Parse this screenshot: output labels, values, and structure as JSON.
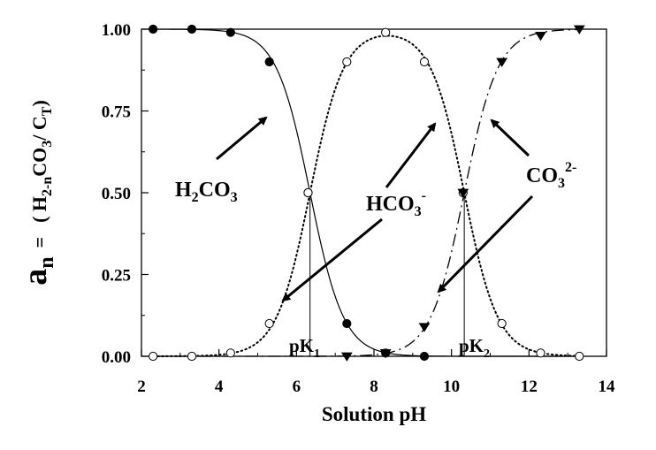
{
  "chart_data": {
    "type": "line",
    "xlabel": "Solution pH",
    "ylabel": {
      "main": "a",
      "sub_n": "n",
      "equals": "=",
      "open": "( H",
      "sub_expr": "2-n",
      "co": "CO",
      "sub_3": "3",
      "slash": "/ C",
      "sub_t": "T",
      "close": ")"
    },
    "xlim": [
      2,
      14
    ],
    "ylim": [
      0,
      1
    ],
    "xticks": [
      "2",
      "4",
      "6",
      "8",
      "10",
      "12",
      "14"
    ],
    "yticks": [
      "0.00",
      "0.25",
      "0.50",
      "0.75",
      "1.00"
    ],
    "pK1": 6.35,
    "pK2": 10.33,
    "curve_x": {
      "start": 2.3,
      "end": 13.3,
      "step": 0.05
    },
    "series": [
      {
        "label_main": "H",
        "label_sub1": "2",
        "label_mid": "CO",
        "label_sub2": "3",
        "label_sup": "",
        "marker": "filled-circle",
        "line": "solid",
        "points": [
          [
            2.3,
            1.0
          ],
          [
            3.3,
            1.0
          ],
          [
            4.3,
            0.99
          ],
          [
            5.3,
            0.9
          ],
          [
            6.3,
            0.5
          ],
          [
            7.3,
            0.1
          ],
          [
            8.3,
            0.01
          ],
          [
            9.3,
            0.0
          ]
        ]
      },
      {
        "label_main": "HCO",
        "label_sub1": "",
        "label_mid": "",
        "label_sub2": "3",
        "label_sup": "-",
        "marker": "open-circle",
        "line": "dotted",
        "points": [
          [
            2.3,
            0.0
          ],
          [
            3.3,
            0.0
          ],
          [
            4.3,
            0.01
          ],
          [
            5.3,
            0.1
          ],
          [
            6.3,
            0.5
          ],
          [
            7.3,
            0.9
          ],
          [
            8.3,
            0.99
          ],
          [
            9.3,
            0.9
          ],
          [
            10.3,
            0.5
          ],
          [
            11.3,
            0.1
          ],
          [
            12.3,
            0.01
          ],
          [
            13.3,
            0.0
          ]
        ]
      },
      {
        "label_main": "CO",
        "label_sub1": "",
        "label_mid": "",
        "label_sub2": "3",
        "label_sup": "2-",
        "marker": "filled-triangle-down",
        "line": "dashed",
        "points": [
          [
            7.3,
            0.0
          ],
          [
            8.3,
            0.01
          ],
          [
            9.3,
            0.09
          ],
          [
            10.3,
            0.5
          ],
          [
            11.3,
            0.9
          ],
          [
            12.3,
            0.98
          ],
          [
            13.3,
            1.0
          ]
        ]
      }
    ],
    "annotations": {
      "pk1": {
        "main": "pK",
        "sub": "1"
      },
      "pk2": {
        "main": "pK",
        "sub": "2"
      }
    }
  }
}
